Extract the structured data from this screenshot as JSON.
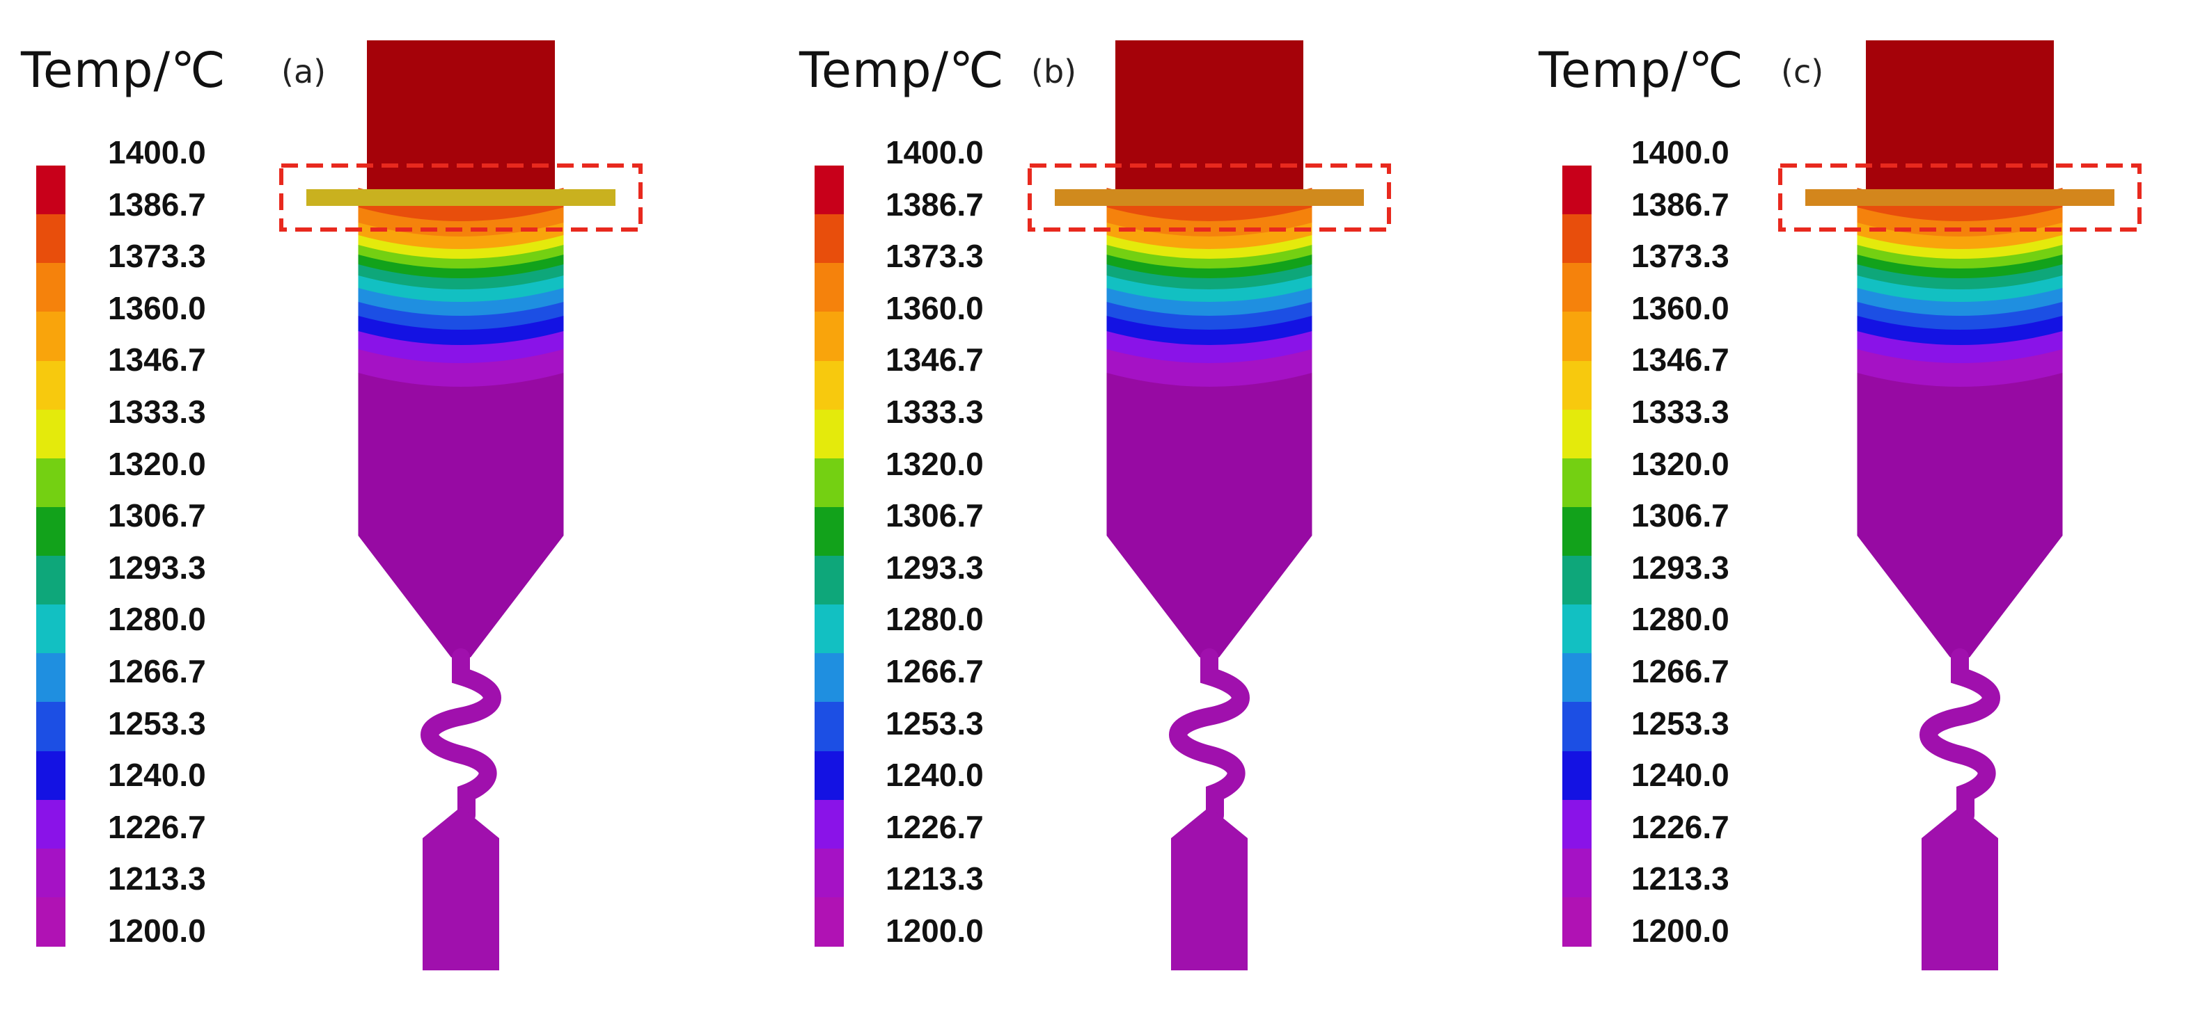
{
  "legend": {
    "title": "Temp/℃",
    "ticks": [
      "1400.0",
      "1386.7",
      "1373.3",
      "1360.0",
      "1346.7",
      "1333.3",
      "1320.0",
      "1306.7",
      "1293.3",
      "1280.0",
      "1266.7",
      "1253.3",
      "1240.0",
      "1226.7",
      "1213.3",
      "1200.0"
    ],
    "colors": [
      "#c8001a",
      "#e84e0c",
      "#f5820c",
      "#f9a40c",
      "#f7c90e",
      "#e4ea0c",
      "#74d012",
      "#12a21b",
      "#0ea77a",
      "#12c0c2",
      "#1f8fe0",
      "#1c4fe4",
      "#1412e3",
      "#8a13e8",
      "#a512c5",
      "#b012b4"
    ]
  },
  "panels": [
    {
      "label": "(a)",
      "bar_fill": "#c9b11f"
    },
    {
      "label": "(b)",
      "bar_fill": "#d08a1d"
    },
    {
      "label": "(c)",
      "bar_fill": "#d3861c"
    }
  ],
  "colors": {
    "top_block": "#a50209",
    "body_purple": "#970aa3",
    "nozzle_purple": "#a010ad",
    "highlight_box": "#e8291e"
  }
}
